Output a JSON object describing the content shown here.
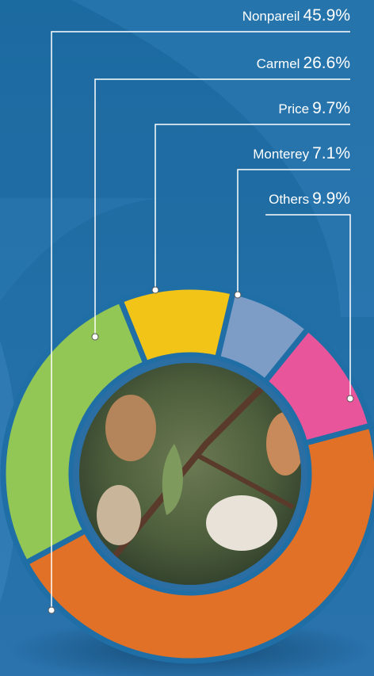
{
  "chart_data": {
    "type": "donut",
    "categories": [
      "Nonpareil",
      "Carmel",
      "Price",
      "Monterey",
      "Others"
    ],
    "values": [
      45.9,
      26.6,
      9.7,
      7.1,
      9.9
    ],
    "value_labels": [
      "45.9%",
      "26.6%",
      "9.7%",
      "7.1%",
      "9.9%"
    ],
    "colors": [
      "#e07127",
      "#92c655",
      "#f2c417",
      "#7d9dc7",
      "#e8559a"
    ]
  }
}
